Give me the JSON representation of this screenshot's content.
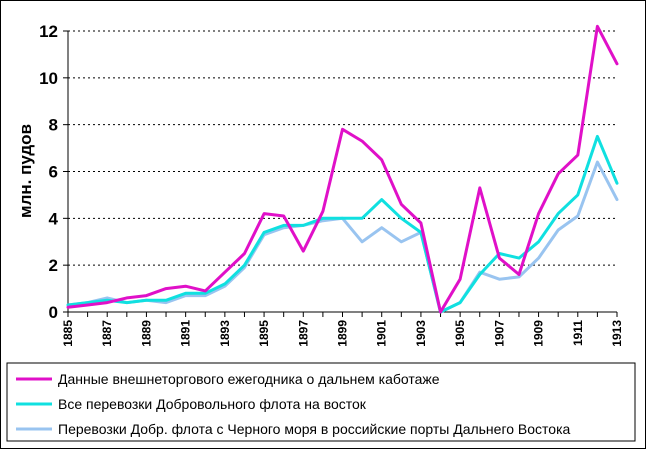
{
  "chart_data": {
    "type": "line",
    "title": "",
    "xlabel": "",
    "ylabel": "млн. пудов",
    "ylim": [
      0,
      12
    ],
    "yticks": [
      "0",
      "2",
      "4",
      "6",
      "8",
      "10",
      "12"
    ],
    "x_tick_labels": [
      "1885",
      "1887",
      "1889",
      "1891",
      "1893",
      "1895",
      "1897",
      "1899",
      "1901",
      "1903",
      "1905",
      "1907",
      "1909",
      "1911",
      "1913"
    ],
    "x": [
      1885,
      1886,
      1887,
      1888,
      1889,
      1890,
      1891,
      1892,
      1893,
      1894,
      1895,
      1896,
      1897,
      1898,
      1899,
      1900,
      1901,
      1902,
      1903,
      1904,
      1905,
      1906,
      1907,
      1908,
      1909,
      1910,
      1911,
      1912,
      1913
    ],
    "grid": "horizontal dashed",
    "legend_position": "bottom",
    "series": [
      {
        "name": "Данные внешнеторгового ежегодника о дальнем каботаже",
        "color": "#E010C8",
        "values": [
          0.2,
          0.3,
          0.4,
          0.6,
          0.7,
          1.0,
          1.1,
          0.9,
          1.7,
          2.5,
          4.2,
          4.1,
          2.6,
          4.3,
          7.8,
          7.3,
          6.5,
          4.6,
          3.8,
          0.0,
          1.4,
          5.3,
          2.3,
          1.6,
          4.2,
          5.9,
          6.7,
          12.2,
          10.6
        ]
      },
      {
        "name": "Все перевозки Добровольного флота на восток",
        "color": "#10E0E0",
        "values": [
          0.3,
          0.4,
          0.5,
          0.4,
          0.5,
          0.5,
          0.8,
          0.8,
          1.2,
          2.0,
          3.4,
          3.7,
          3.7,
          4.0,
          4.0,
          4.0,
          4.8,
          4.0,
          3.4,
          0.0,
          0.4,
          1.6,
          2.5,
          2.3,
          3.0,
          4.2,
          5.0,
          7.5,
          5.5
        ]
      },
      {
        "name": "Перевозки Добр. флота с Черного моря в российские порты Дальнего Востока",
        "color": "#99C4F0",
        "values": [
          0.3,
          0.4,
          0.6,
          0.4,
          0.5,
          0.4,
          0.7,
          0.7,
          1.1,
          1.9,
          3.3,
          3.6,
          3.7,
          3.9,
          4.0,
          3.0,
          3.6,
          3.0,
          3.4,
          0.0,
          0.4,
          1.7,
          1.4,
          1.5,
          2.3,
          3.5,
          4.1,
          6.4,
          4.8
        ]
      }
    ]
  }
}
